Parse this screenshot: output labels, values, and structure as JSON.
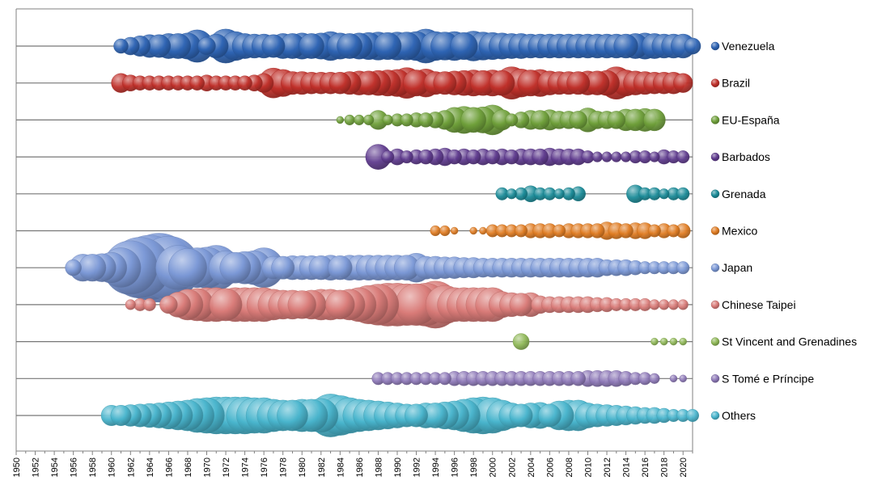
{
  "chart_data": {
    "type": "bubble-timeline",
    "title": "",
    "xlabel": "",
    "ylabel": "",
    "xlim": [
      1950,
      2021
    ],
    "x_ticks": [
      1950,
      1952,
      1954,
      1956,
      1958,
      1960,
      1962,
      1964,
      1966,
      1968,
      1970,
      1972,
      1974,
      1976,
      1978,
      1980,
      1982,
      1984,
      1986,
      1988,
      1990,
      1992,
      1994,
      1996,
      1998,
      2000,
      2002,
      2004,
      2006,
      2008,
      2010,
      2012,
      2014,
      2016,
      2018,
      2020
    ],
    "legend_position": "right",
    "value_note": "bubble size, relative (0-100 scale)",
    "series": [
      {
        "name": "Venezuela",
        "color": "#2e64b4",
        "x": [
          1961,
          1962,
          1963,
          1964,
          1965,
          1966,
          1967,
          1968,
          1969,
          1970,
          1971,
          1972,
          1973,
          1974,
          1975,
          1976,
          1977,
          1978,
          1979,
          1980,
          1981,
          1982,
          1983,
          1984,
          1985,
          1986,
          1987,
          1988,
          1989,
          1990,
          1991,
          1992,
          1993,
          1994,
          1995,
          1996,
          1997,
          1998,
          1999,
          2000,
          2001,
          2002,
          2003,
          2004,
          2005,
          2006,
          2007,
          2008,
          2009,
          2010,
          2011,
          2012,
          2013,
          2014,
          2015,
          2016,
          2017,
          2018,
          2019,
          2020,
          2021
        ],
        "values": [
          4,
          6,
          8,
          10,
          10,
          12,
          12,
          13,
          20,
          6,
          11,
          22,
          16,
          12,
          11,
          11,
          10,
          12,
          12,
          13,
          12,
          13,
          16,
          13,
          12,
          13,
          14,
          15,
          14,
          15,
          15,
          16,
          22,
          16,
          15,
          16,
          14,
          17,
          15,
          14,
          13,
          12,
          12,
          11,
          11,
          11,
          11,
          11,
          11,
          11,
          11,
          11,
          11,
          11,
          12,
          13,
          12,
          11,
          11,
          11,
          5
        ]
      },
      {
        "name": "Brazil",
        "color": "#c0302a",
        "x": [
          1961,
          1962,
          1963,
          1964,
          1965,
          1966,
          1967,
          1968,
          1969,
          1970,
          1971,
          1972,
          1973,
          1974,
          1975,
          1976,
          1977,
          1978,
          1979,
          1980,
          1981,
          1982,
          1983,
          1984,
          1985,
          1986,
          1987,
          1988,
          1989,
          1990,
          1991,
          1992,
          1993,
          1994,
          1995,
          1996,
          1997,
          1998,
          1999,
          2000,
          2001,
          2002,
          2003,
          2004,
          2005,
          2006,
          2007,
          2008,
          2009,
          2010,
          2011,
          2012,
          2013,
          2014,
          2015,
          2016,
          2017,
          2018,
          2019,
          2020
        ],
        "values": [
          7,
          5,
          4,
          4,
          4,
          4,
          4,
          4,
          4,
          5,
          4,
          4,
          4,
          4,
          5,
          7,
          17,
          14,
          10,
          10,
          9,
          9,
          9,
          9,
          10,
          11,
          11,
          12,
          13,
          14,
          18,
          13,
          15,
          10,
          10,
          11,
          12,
          13,
          12,
          13,
          12,
          20,
          15,
          13,
          14,
          11,
          10,
          10,
          10,
          11,
          11,
          12,
          20,
          13,
          11,
          10,
          9,
          9,
          9,
          7
        ]
      },
      {
        "name": "EU-España",
        "color": "#6fa03a",
        "x": [
          1984,
          1985,
          1986,
          1987,
          1988,
          1989,
          1990,
          1991,
          1992,
          1993,
          1994,
          1995,
          1996,
          1997,
          1998,
          1999,
          2000,
          2001,
          2002,
          2003,
          2004,
          2005,
          2006,
          2007,
          2008,
          2009,
          2010,
          2011,
          2012,
          2013,
          2014,
          2015,
          2016,
          2017
        ],
        "values": [
          1,
          2,
          2,
          2,
          7,
          2,
          3,
          3,
          4,
          4,
          5,
          7,
          12,
          14,
          12,
          13,
          17,
          8,
          3,
          5,
          7,
          7,
          8,
          6,
          6,
          6,
          11,
          6,
          6,
          6,
          9,
          9,
          10,
          9
        ]
      },
      {
        "name": "Barbados",
        "color": "#5f3b8e",
        "x": [
          1988,
          1989,
          1990,
          1991,
          1992,
          1993,
          1994,
          1995,
          1996,
          1997,
          1998,
          1999,
          2000,
          2001,
          2002,
          2003,
          2004,
          2005,
          2006,
          2007,
          2008,
          2009,
          2010,
          2011,
          2012,
          2013,
          2014,
          2015,
          2016,
          2017,
          2018,
          2019,
          2020
        ],
        "values": [
          12,
          3,
          5,
          3,
          4,
          4,
          5,
          6,
          4,
          5,
          4,
          5,
          4,
          5,
          4,
          5,
          5,
          5,
          6,
          5,
          5,
          5,
          3,
          2,
          2,
          2,
          2,
          3,
          3,
          2,
          4,
          3,
          3
        ]
      },
      {
        "name": "Grenada",
        "color": "#1a8b98",
        "x": [
          2001,
          2002,
          2003,
          2004,
          2005,
          2006,
          2007,
          2008,
          2009,
          2015,
          2016,
          2017,
          2018,
          2019,
          2020
        ],
        "values": [
          3,
          2,
          3,
          5,
          3,
          3,
          2,
          3,
          4,
          6,
          3,
          3,
          2,
          3,
          3
        ]
      },
      {
        "name": "Mexico",
        "color": "#e07c22",
        "x": [
          1994,
          1995,
          1996,
          1998,
          1999,
          2000,
          2001,
          2002,
          2003,
          2004,
          2005,
          2006,
          2007,
          2008,
          2009,
          2010,
          2011,
          2012,
          2013,
          2014,
          2015,
          2016,
          2017,
          2018,
          2019,
          2020
        ],
        "values": [
          2,
          2,
          1,
          1,
          1,
          3,
          3,
          3,
          3,
          4,
          4,
          4,
          3,
          4,
          4,
          4,
          4,
          6,
          5,
          4,
          5,
          5,
          3,
          4,
          3,
          4
        ]
      },
      {
        "name": "Japan",
        "color": "#7b98d6",
        "x": [
          1956,
          1957,
          1958,
          1959,
          1960,
          1961,
          1962,
          1963,
          1964,
          1965,
          1966,
          1967,
          1968,
          1969,
          1970,
          1971,
          1972,
          1973,
          1974,
          1975,
          1976,
          1977,
          1978,
          1979,
          1980,
          1981,
          1982,
          1983,
          1984,
          1985,
          1986,
          1987,
          1988,
          1989,
          1990,
          1991,
          1992,
          1993,
          1994,
          1995,
          1996,
          1997,
          1998,
          1999,
          2000,
          2001,
          2002,
          2003,
          2004,
          2005,
          2006,
          2007,
          2008,
          2009,
          2010,
          2011,
          2012,
          2013,
          2014,
          2015,
          2016,
          2017,
          2018,
          2019,
          2020
        ],
        "values": [
          5,
          14,
          14,
          15,
          18,
          30,
          55,
          70,
          80,
          90,
          75,
          38,
          28,
          30,
          32,
          38,
          22,
          18,
          20,
          22,
          30,
          10,
          10,
          11,
          11,
          11,
          11,
          12,
          11,
          12,
          12,
          12,
          12,
          12,
          12,
          12,
          16,
          10,
          10,
          9,
          9,
          8,
          8,
          7,
          7,
          7,
          7,
          7,
          7,
          7,
          7,
          7,
          7,
          7,
          7,
          7,
          5,
          5,
          5,
          4,
          3,
          3,
          3,
          3,
          3
        ]
      },
      {
        "name": "Chinese Taipei",
        "color": "#d97b78",
        "x": [
          1962,
          1963,
          1964,
          1966,
          1967,
          1968,
          1969,
          1970,
          1971,
          1972,
          1973,
          1974,
          1975,
          1976,
          1977,
          1978,
          1979,
          1980,
          1981,
          1982,
          1983,
          1984,
          1985,
          1986,
          1987,
          1988,
          1989,
          1990,
          1991,
          1992,
          1993,
          1994,
          1995,
          1996,
          1997,
          1998,
          1999,
          2000,
          2001,
          2002,
          2003,
          2004,
          2005,
          2006,
          2007,
          2008,
          2009,
          2010,
          2011,
          2012,
          2013,
          2014,
          2015,
          2016,
          2017,
          2018,
          2019,
          2020
        ],
        "values": [
          2,
          3,
          3,
          6,
          12,
          18,
          20,
          22,
          22,
          20,
          22,
          22,
          22,
          22,
          18,
          16,
          16,
          15,
          16,
          18,
          18,
          16,
          18,
          22,
          28,
          32,
          35,
          35,
          33,
          33,
          35,
          42,
          28,
          22,
          22,
          22,
          22,
          22,
          13,
          11,
          10,
          11,
          6,
          5,
          5,
          5,
          5,
          5,
          4,
          4,
          3,
          3,
          3,
          3,
          2,
          2,
          2,
          2
        ]
      },
      {
        "name": "St Vincent and Grenadines",
        "color": "#8fb857",
        "x": [
          2003,
          2017,
          2018,
          2019,
          2020
        ],
        "values": [
          5,
          1,
          1,
          1,
          1
        ]
      },
      {
        "name": "S Tomé e Príncipe",
        "color": "#8e79b8",
        "x": [
          1988,
          1989,
          1990,
          1991,
          1992,
          1993,
          1994,
          1995,
          1996,
          1997,
          1998,
          1999,
          2000,
          2001,
          2002,
          2003,
          2004,
          2005,
          2006,
          2007,
          2008,
          2009,
          2010,
          2011,
          2012,
          2013,
          2014,
          2015,
          2016,
          2017,
          2019,
          2020
        ],
        "values": [
          3,
          3,
          3,
          3,
          3,
          3,
          3,
          3,
          4,
          4,
          4,
          4,
          4,
          4,
          4,
          4,
          4,
          4,
          4,
          4,
          4,
          4,
          5,
          5,
          5,
          5,
          4,
          3,
          3,
          2,
          1,
          1
        ]
      },
      {
        "name": "Others",
        "color": "#49b5cd",
        "x": [
          1960,
          1961,
          1962,
          1963,
          1964,
          1965,
          1966,
          1967,
          1968,
          1969,
          1970,
          1971,
          1972,
          1973,
          1974,
          1975,
          1976,
          1977,
          1978,
          1979,
          1980,
          1981,
          1982,
          1983,
          1984,
          1985,
          1986,
          1987,
          1988,
          1989,
          1990,
          1991,
          1992,
          1993,
          1994,
          1995,
          1996,
          1997,
          1998,
          1999,
          2000,
          2001,
          2002,
          2003,
          2004,
          2005,
          2006,
          2007,
          2008,
          2009,
          2010,
          2011,
          2012,
          2013,
          2014,
          2015,
          2016,
          2017,
          2018,
          2019,
          2020,
          2021
        ],
        "values": [
          8,
          8,
          9,
          10,
          11,
          12,
          14,
          16,
          18,
          22,
          24,
          26,
          26,
          26,
          26,
          24,
          24,
          20,
          18,
          18,
          20,
          20,
          22,
          35,
          30,
          24,
          20,
          18,
          16,
          14,
          12,
          10,
          10,
          12,
          12,
          14,
          16,
          20,
          24,
          26,
          24,
          18,
          12,
          10,
          12,
          13,
          10,
          16,
          18,
          18,
          12,
          10,
          9,
          8,
          7,
          6,
          5,
          5,
          4,
          3,
          3,
          3
        ]
      }
    ]
  }
}
